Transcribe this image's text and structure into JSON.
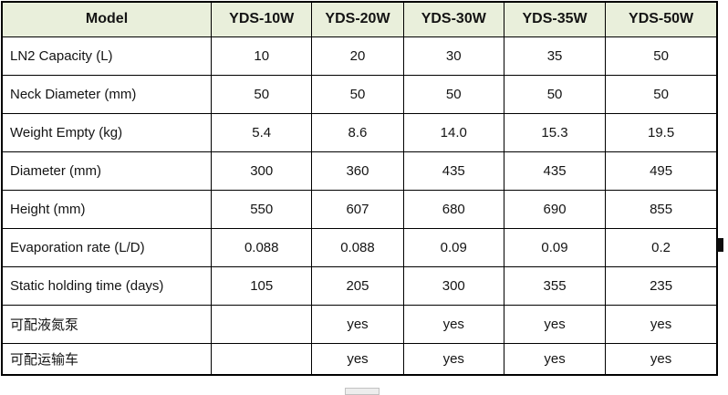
{
  "table": {
    "header": [
      "Model",
      "YDS-10W",
      "YDS-20W",
      "YDS-30W",
      "YDS-35W",
      "YDS-50W"
    ],
    "rows": [
      {
        "label": "LN2 Capacity (L)",
        "values": [
          "10",
          "20",
          "30",
          "35",
          "50"
        ]
      },
      {
        "label": "Neck Diameter (mm)",
        "values": [
          "50",
          "50",
          "50",
          "50",
          "50"
        ]
      },
      {
        "label": "Weight Empty (kg)",
        "values": [
          "5.4",
          "8.6",
          "14.0",
          "15.3",
          "19.5"
        ]
      },
      {
        "label": "Diameter (mm)",
        "values": [
          "300",
          "360",
          "435",
          "435",
          "495"
        ]
      },
      {
        "label": "Height (mm)",
        "values": [
          "550",
          "607",
          "680",
          "690",
          "855"
        ]
      },
      {
        "label": "Evaporation rate (L/D)",
        "values": [
          "0.088",
          "0.088",
          "0.09",
          "0.09",
          "0.2"
        ]
      },
      {
        "label": "Static holding time (days)",
        "values": [
          "105",
          "205",
          "300",
          "355",
          "235"
        ]
      },
      {
        "label": "可配液氮泵",
        "values": [
          "",
          "yes",
          "yes",
          "yes",
          "yes"
        ]
      },
      {
        "label": "可配运输车",
        "values": [
          "",
          "yes",
          "yes",
          "yes",
          "yes"
        ]
      }
    ]
  },
  "colors": {
    "header_bg": "#e9efdb",
    "border": "#000000",
    "text": "#141414",
    "scrollbar_thumb": "#ededed"
  }
}
